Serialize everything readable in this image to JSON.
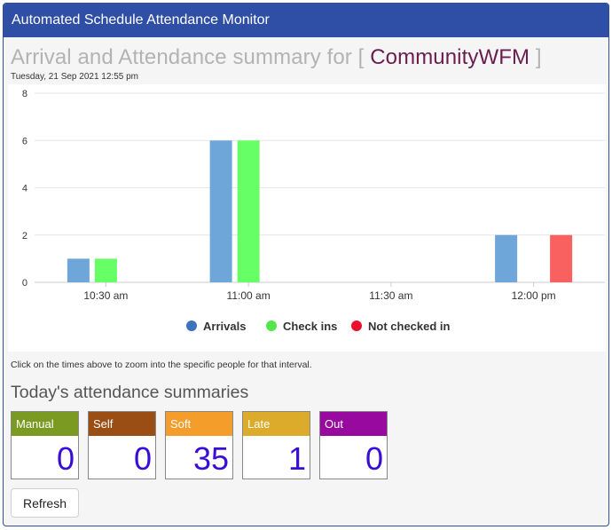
{
  "header": {
    "title": "Automated Schedule Attendance Monitor"
  },
  "summary": {
    "title_prefix": "Arrival and Attendance summary for [ ",
    "company": "CommunityWFM",
    "title_suffix": " ]",
    "timestamp": "Tuesday, 21 Sep 2021 12:55 pm"
  },
  "chart_data": {
    "type": "bar",
    "categories": [
      "10:30 am",
      "11:00 am",
      "11:30 am",
      "12:00 pm"
    ],
    "series": [
      {
        "name": "Arrivals",
        "color": "#6ea6da",
        "values": [
          1,
          6,
          0,
          2
        ]
      },
      {
        "name": "Check ins",
        "color": "#66ff66",
        "values": [
          1,
          6,
          0,
          0
        ]
      },
      {
        "name": "Not checked in",
        "color": "#f96161",
        "values": [
          0,
          0,
          0,
          2
        ]
      }
    ],
    "legend_colors": [
      "#3d72be",
      "#52e64a",
      "#e8102a"
    ],
    "ylim": [
      0,
      8
    ],
    "yticks": [
      0,
      2,
      4,
      6,
      8
    ],
    "grid": true,
    "legend": "bottom-center"
  },
  "hint_text": "Click on the times above to zoom into the specific people for that interval.",
  "today": {
    "title": "Today's attendance summaries",
    "tiles": [
      {
        "label": "Manual",
        "value": "0",
        "color": "#7b9a22"
      },
      {
        "label": "Self",
        "value": "0",
        "color": "#9a4e14"
      },
      {
        "label": "Soft",
        "value": "35",
        "color": "#f59d2a"
      },
      {
        "label": "Late",
        "value": "1",
        "color": "#ddab2c"
      },
      {
        "label": "Out",
        "value": "0",
        "color": "#980a9f"
      }
    ]
  },
  "refresh_label": "Refresh"
}
